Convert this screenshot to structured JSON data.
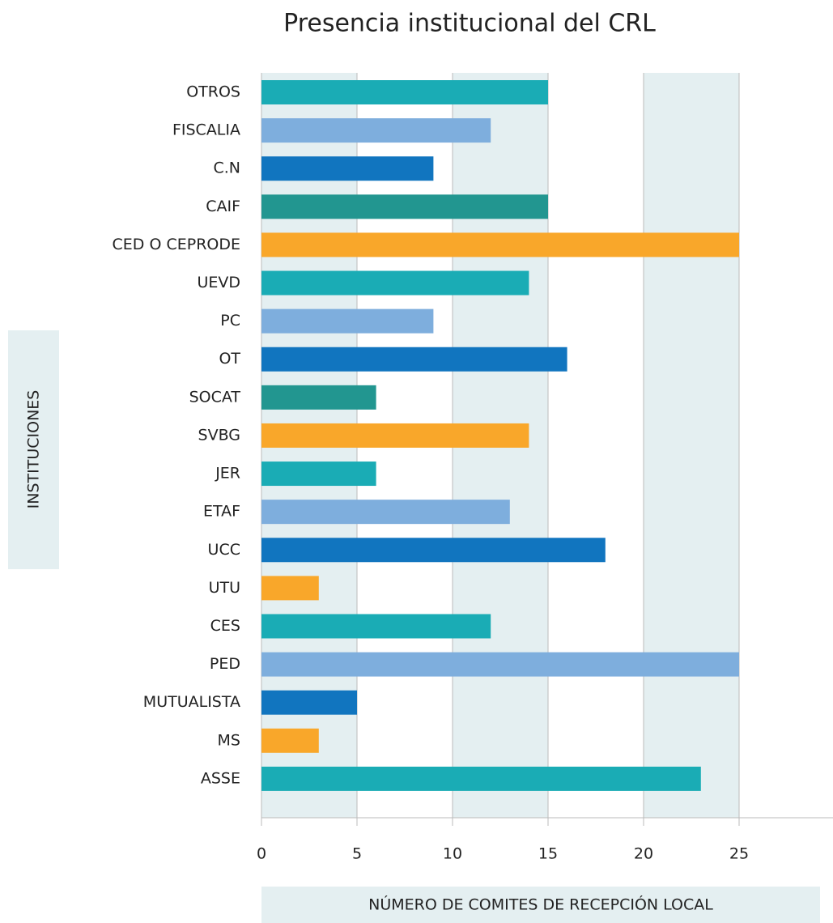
{
  "chart_data": {
    "type": "barh",
    "title": "Presencia institucional del CRL",
    "xlabel": "NÚMERO DE COMITES DE RECEPCIÓN LOCAL",
    "ylabel": "INSTITUCIONES",
    "categories": [
      "OTROS",
      "FISCALIA",
      "C.N",
      "CAIF",
      "CED O CEPRODE",
      "UEVD",
      "PC",
      "OT",
      "SOCAT",
      "SVBG",
      "JER",
      "ETAF",
      "UCC",
      "UTU",
      "CES",
      "PED",
      "MUTUALISTA",
      "MS",
      "ASSE"
    ],
    "values": [
      15,
      12,
      9,
      15,
      25,
      14,
      9,
      16,
      6,
      14,
      6,
      13,
      18,
      3,
      12,
      25,
      5,
      3,
      23
    ],
    "colors": [
      "#1aacb5",
      "#7eaedd",
      "#1175bf",
      "#229690",
      "#f9a72a",
      "#1aacb5",
      "#7eaedd",
      "#1175bf",
      "#229690",
      "#f9a72a",
      "#1aacb5",
      "#7eaedd",
      "#1175bf",
      "#f9a72a",
      "#1aacb5",
      "#7eaedd",
      "#1175bf",
      "#f9a72a",
      "#1aacb5"
    ],
    "xlim": [
      0,
      30
    ],
    "xticks": [
      0,
      5,
      10,
      15,
      20,
      25
    ],
    "grid": true
  }
}
